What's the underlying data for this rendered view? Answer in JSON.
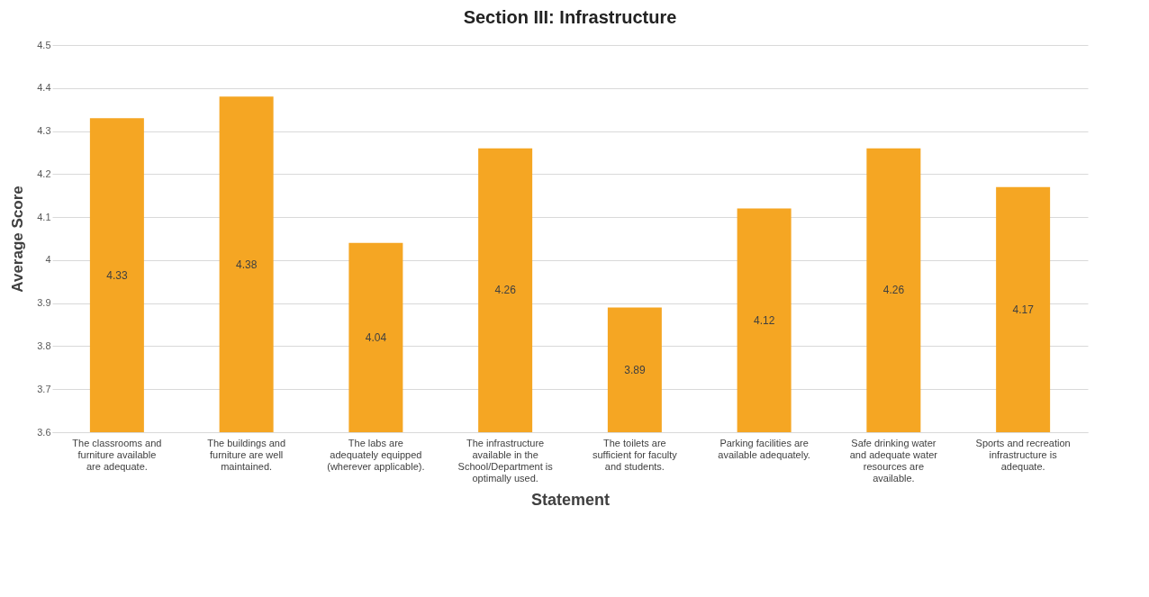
{
  "chart_data": {
    "type": "bar",
    "title": "Section III: Infrastructure",
    "xlabel": "Statement",
    "ylabel": "Average Score",
    "categories": [
      "The classrooms and furniture available are adequate.",
      "The buildings and furniture are well maintained.",
      "The labs are adequately equipped (wherever applicable).",
      "The infrastructure available in the School/Department is optimally used.",
      "The toilets are sufficient for faculty and students.",
      "Parking facilities are available adequately.",
      "Safe drinking water and adequate water resources are available.",
      "Sports and recreation infrastructure is adequate."
    ],
    "values": [
      4.33,
      4.38,
      4.04,
      4.26,
      3.89,
      4.12,
      4.26,
      4.17
    ],
    "color": "#f5a623",
    "ylim": [
      3.6,
      4.5
    ],
    "yticks": [
      3.6,
      3.7,
      3.8,
      3.9,
      4,
      4.1,
      4.2,
      4.3,
      4.4,
      4.5
    ],
    "grid": "y",
    "data_labels": true
  }
}
